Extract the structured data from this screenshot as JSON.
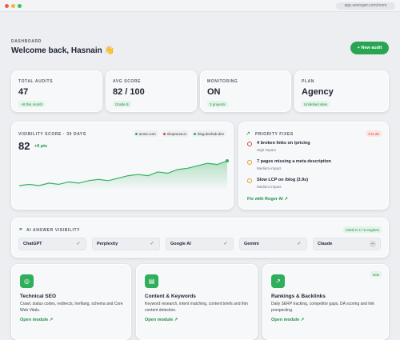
{
  "browser": {
    "url": "app.seoroger.com/room"
  },
  "header": {
    "eyebrow": "DASHBOARD",
    "title": "Welcome back, Hasnain 👋",
    "button": "+ New audit"
  },
  "stats": [
    {
      "label": "TOTAL AUDITS",
      "value": "47",
      "chip": "+8 this month"
    },
    {
      "label": "AVG SCORE",
      "value": "82 / 100",
      "chip": "Grade B"
    },
    {
      "label": "MONITORING",
      "value": "ON",
      "chip": "3 projects"
    },
    {
      "label": "PLAN",
      "value": "Agency",
      "chip": "Unlimited sites"
    }
  ],
  "visibility": {
    "title": "VISIBILITY SCORE · 30 DAYS",
    "sites": [
      "acme.com",
      "shopnova.io",
      "blog.devhub.dev"
    ],
    "score": "82",
    "delta": "+6 pts",
    "chart": {
      "type": "line",
      "color": "#34b15f",
      "values": [
        62,
        63,
        62,
        64,
        63,
        65,
        64,
        66,
        67,
        66,
        68,
        70,
        71,
        70,
        73,
        72,
        75,
        76,
        78,
        80,
        79,
        82
      ]
    }
  },
  "fixes": {
    "title": "PRIORITY FIXES",
    "badge": "3 to do",
    "items": [
      {
        "text": "4 broken links on /pricing",
        "impact": "High impact"
      },
      {
        "text": "7 pages missing a meta description",
        "impact": "Medium impact"
      },
      {
        "text": "Slow LCP on /blog (3.9s)",
        "impact": "Medium impact"
      }
    ],
    "link": "Fix with Roger AI ↗"
  },
  "ai": {
    "title": "AI ANSWER VISIBILITY",
    "badge": "Cited in 4 / 5 engines",
    "engines": [
      {
        "name": "ChatGPT",
        "status": "✓"
      },
      {
        "name": "Perplexity",
        "status": "✓"
      },
      {
        "name": "Google AI",
        "status": "✓"
      },
      {
        "name": "Gemini",
        "status": "✓"
      },
      {
        "name": "Claude",
        "status": "–"
      }
    ]
  },
  "modules": [
    {
      "title": "Technical SEO",
      "desc": "Crawl, status codes, redirects, hreflang, schema and Core Web Vitals.",
      "link": "Open module ↗"
    },
    {
      "title": "Content & Keywords",
      "desc": "Keyword research, intent matching, content briefs and thin content detection.",
      "link": "Open module ↗"
    },
    {
      "title": "Rankings & Backlinks",
      "desc": "Daily SERP tracking, competitor gaps, DA scoring and link prospecting.",
      "link": "Open module ↗",
      "badge": "new"
    }
  ]
}
